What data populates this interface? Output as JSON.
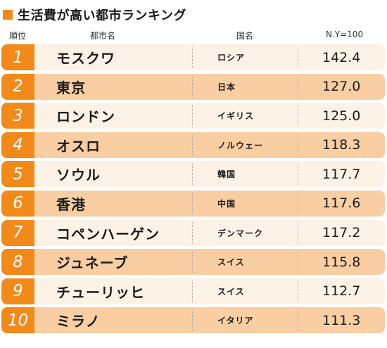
{
  "title": "生活費が高い都市ランキング",
  "header": {
    "rank": "順位",
    "city": "都市名",
    "country": "国名",
    "index": "N.Y=100"
  },
  "rows": [
    {
      "rank": "1",
      "city": "モスクワ",
      "country": "ロシア",
      "index": "142.4"
    },
    {
      "rank": "2",
      "city": "東京",
      "country": "日本",
      "index": "127.0"
    },
    {
      "rank": "3",
      "city": "ロンドン",
      "country": "イギリス",
      "index": "125.0"
    },
    {
      "rank": "4",
      "city": "オスロ",
      "country": "ノルウェー",
      "index": "118.3"
    },
    {
      "rank": "5",
      "city": "ソウル",
      "country": "韓国",
      "index": "117.7"
    },
    {
      "rank": "6",
      "city": "香港",
      "country": "中国",
      "index": "117.6"
    },
    {
      "rank": "7",
      "city": "コペンハーゲン",
      "country": "デンマーク",
      "index": "117.2"
    },
    {
      "rank": "8",
      "city": "ジュネーブ",
      "country": "スイス",
      "index": "115.8"
    },
    {
      "rank": "9",
      "city": "チューリッヒ",
      "country": "スイス",
      "index": "112.7"
    },
    {
      "rank": "10",
      "city": "ミラノ",
      "country": "イタリア",
      "index": "111.3"
    }
  ],
  "colors": {
    "accent": "#f28a1a",
    "row_light": "#fdf2e6",
    "row_dark": "#f9cea3"
  }
}
